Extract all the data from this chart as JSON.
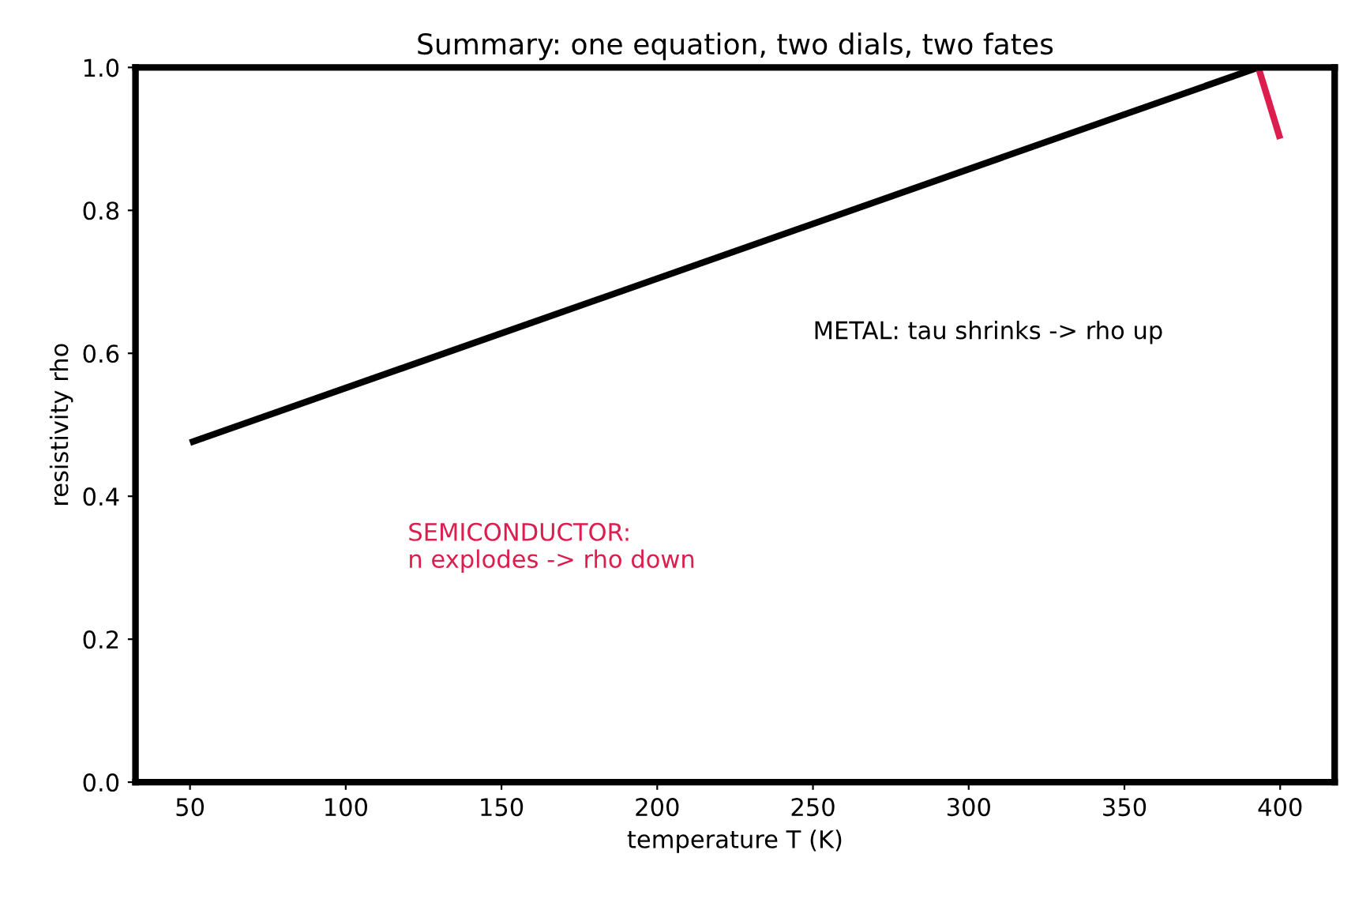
{
  "chart_data": {
    "type": "line",
    "title": "Summary: one equation, two dials, two fates",
    "xlabel": "temperature T (K)",
    "ylabel": "resistivity rho",
    "series": [
      {
        "color": "#000000",
        "x": [
          50,
          393
        ],
        "values": [
          0.475,
          1.0
        ]
      },
      {
        "color": "#dc1e4e",
        "x": [
          393,
          400
        ],
        "values": [
          1.0,
          0.9
        ]
      }
    ],
    "annotations": [
      "METAL: tau shrinks -> rho up",
      "SEMICONDUCTOR:\nn explodes -> rho down"
    ],
    "xlim": [
      32.5,
      417.5
    ],
    "ylim": [
      0,
      1
    ],
    "xticks": [
      50,
      100,
      150,
      200,
      250,
      300,
      350,
      400
    ],
    "yticks": [
      {
        "value": 0,
        "label": "0.0"
      },
      0.2,
      0.4,
      0.6,
      0.8,
      {
        "value": 1,
        "label": "1.0"
      }
    ],
    "grid": false,
    "legend": false
  }
}
